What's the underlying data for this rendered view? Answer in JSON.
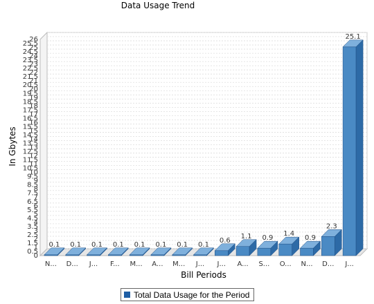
{
  "chart_data": {
    "type": "bar",
    "title": "Data Usage Trend",
    "xlabel": "Bill Periods",
    "ylabel": "In Gbytes",
    "ylim": [
      0,
      26
    ],
    "ytick_step": 0.5,
    "grid": true,
    "legend_position": "bottom",
    "categories": [
      "N...",
      "D...",
      "J...",
      "F...",
      "M...",
      "A...",
      "M...",
      "J...",
      "J...",
      "A...",
      "S...",
      "O...",
      "N...",
      "D...",
      "J..."
    ],
    "series": [
      {
        "name": "Total Data Usage for the Period",
        "values": [
          0.1,
          0.1,
          0.1,
          0.1,
          0.1,
          0.1,
          0.1,
          0.1,
          0.6,
          1.1,
          0.9,
          1.4,
          0.9,
          2.3,
          25.1
        ],
        "labels": [
          "0.1",
          "0.1",
          "0.1",
          "0.1",
          "0.1",
          "0.1",
          "0.1",
          "0.1",
          "0.6",
          "1.1",
          "0.9",
          "1.4",
          "0.9",
          "2.3",
          "25.1"
        ],
        "color": "#4a8ac4"
      }
    ],
    "colors": {
      "bar_front": "#4a8ac4",
      "bar_side": "#2d6aa6",
      "bar_top": "#7fb0dc",
      "grid": "#dddddd",
      "wall": "#ffffff",
      "floor": "#e6e6e6"
    }
  }
}
